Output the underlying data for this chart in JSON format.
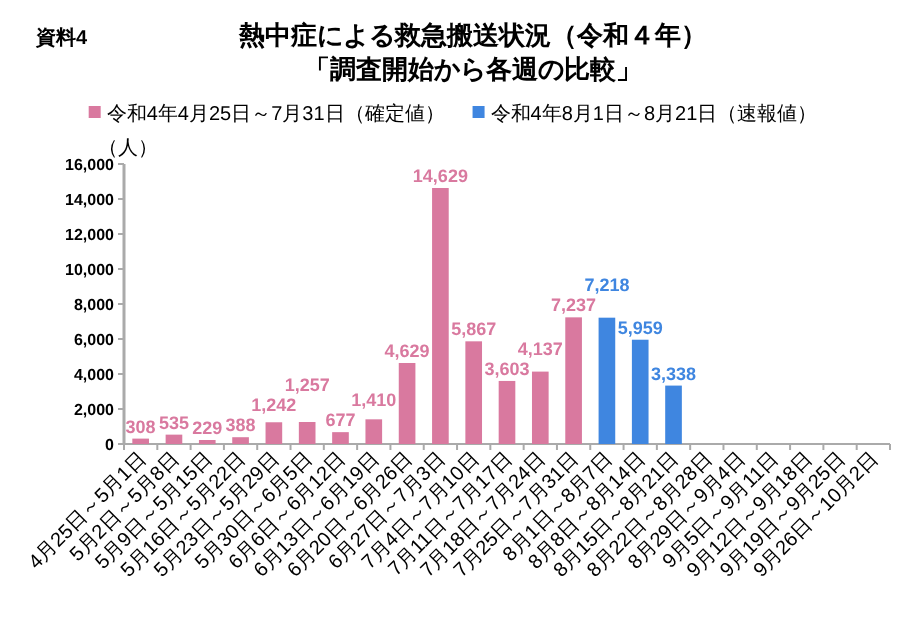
{
  "chart_data": {
    "type": "bar",
    "title": "熱中症による救急搬送状況（令和４年）",
    "subtitle": "「調査開始から各週の比較」",
    "ylabel": "（人）",
    "annotations": [
      "資料4"
    ],
    "categories": [
      "4月25日～5月1日",
      "5月2日～5月8日",
      "5月9日～5月15日",
      "5月16日～5月22日",
      "5月23日～5月29日",
      "5月30日～6月5日",
      "6月6日～6月12日",
      "6月13日～6月19日",
      "6月20日～6月26日",
      "6月27日～7月3日",
      "7月4日～7月10日",
      "7月11日～7月17日",
      "7月18日～7月24日",
      "7月25日～7月31日",
      "8月1日～8月7日",
      "8月8日～8月14日",
      "8月15日～8月21日",
      "8月22日～8月28日",
      "8月29日～9月4日",
      "9月5日～9月11日",
      "9月12日～9月18日",
      "9月19日～9月25日",
      "9月26日～10月2日"
    ],
    "series": [
      {
        "name": "令和4年4月25日～7月31日（確定値）",
        "color": "#d9799f",
        "values": [
          308,
          535,
          229,
          388,
          1242,
          1257,
          677,
          1410,
          4629,
          14629,
          5867,
          3603,
          4137,
          7237,
          null,
          null,
          null,
          null,
          null,
          null,
          null,
          null,
          null
        ],
        "value_labels": [
          "308",
          "535",
          "229",
          "388",
          "1,242",
          "1,257",
          "677",
          "1,410",
          "4,629",
          "14,629",
          "5,867",
          "3,603",
          "4,137",
          "7,237",
          null,
          null,
          null,
          null,
          null,
          null,
          null,
          null,
          null
        ]
      },
      {
        "name": "令和4年8月1日～8月21日（速報値）",
        "color": "#3f86e0",
        "values": [
          null,
          null,
          null,
          null,
          null,
          null,
          null,
          null,
          null,
          null,
          null,
          null,
          null,
          null,
          7218,
          5959,
          3338,
          null,
          null,
          null,
          null,
          null,
          null
        ],
        "value_labels": [
          null,
          null,
          null,
          null,
          null,
          null,
          null,
          null,
          null,
          null,
          null,
          null,
          null,
          null,
          "7,218",
          "5,959",
          "3,338",
          null,
          null,
          null,
          null,
          null,
          null
        ]
      }
    ],
    "ylim": [
      0,
      16000
    ],
    "yticks": [
      {
        "value": 0,
        "label": "0"
      },
      {
        "value": 2000,
        "label": "2,000"
      },
      {
        "value": 4000,
        "label": "4,000"
      },
      {
        "value": 6000,
        "label": "6,000"
      },
      {
        "value": 8000,
        "label": "8,000"
      },
      {
        "value": 10000,
        "label": "10,000"
      },
      {
        "value": 12000,
        "label": "12,000"
      },
      {
        "value": 14000,
        "label": "14,000"
      },
      {
        "value": 16000,
        "label": "16,000"
      }
    ],
    "legend": "top",
    "grid": false
  }
}
